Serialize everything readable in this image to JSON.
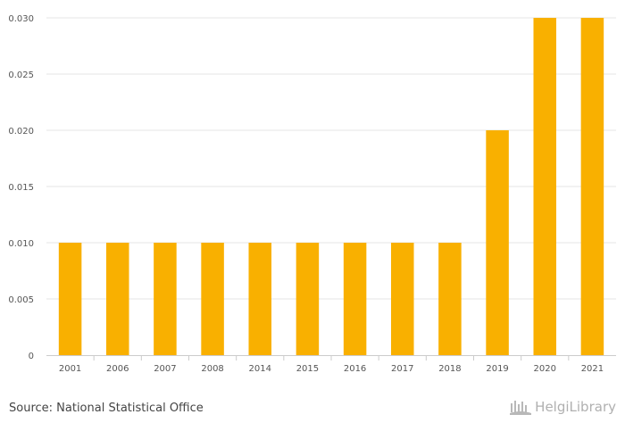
{
  "chart_data": {
    "type": "bar",
    "categories": [
      "2001",
      "2006",
      "2007",
      "2008",
      "2014",
      "2015",
      "2016",
      "2017",
      "2018",
      "2019",
      "2020",
      "2021"
    ],
    "values": [
      0.01,
      0.01,
      0.01,
      0.01,
      0.01,
      0.01,
      0.01,
      0.01,
      0.01,
      0.02,
      0.03,
      0.03
    ],
    "ylim": [
      0,
      0.03
    ],
    "yticks": [
      "0",
      "0.005",
      "0.010",
      "0.015",
      "0.020",
      "0.025",
      "0.030"
    ],
    "title": "",
    "xlabel": "",
    "ylabel": "",
    "grid": true,
    "bar_color": "#f9b000"
  },
  "footer": {
    "source": "Source: National Statistical Office",
    "brand": "HelgiLibrary",
    "brand_icon": "library-logo-icon"
  }
}
